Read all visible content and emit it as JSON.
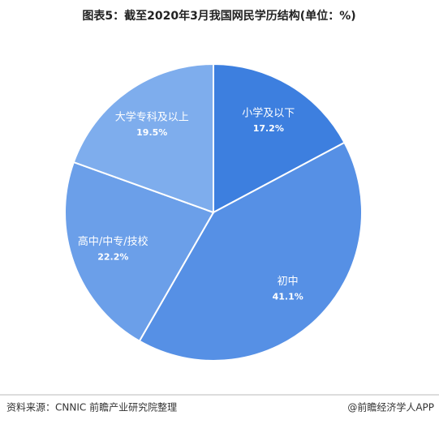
{
  "chart_data": {
    "type": "pie",
    "title": "图表5：截至2020年3月我国网民学历结构(单位：%)",
    "categories": [
      "小学及以下",
      "初中",
      "高中/中专/技校",
      "大学专科及以上"
    ],
    "values": [
      17.2,
      41.1,
      22.2,
      19.5
    ],
    "value_labels": [
      "17.2%",
      "41.1%",
      "22.2%",
      "19.5%"
    ],
    "colors": [
      "#3d7fdf",
      "#5690e5",
      "#6b9fe9",
      "#7eaded"
    ]
  },
  "footer": {
    "source": "资料来源：CNNIC 前瞻产业研究院整理",
    "brand": "@前瞻经济学人APP"
  }
}
